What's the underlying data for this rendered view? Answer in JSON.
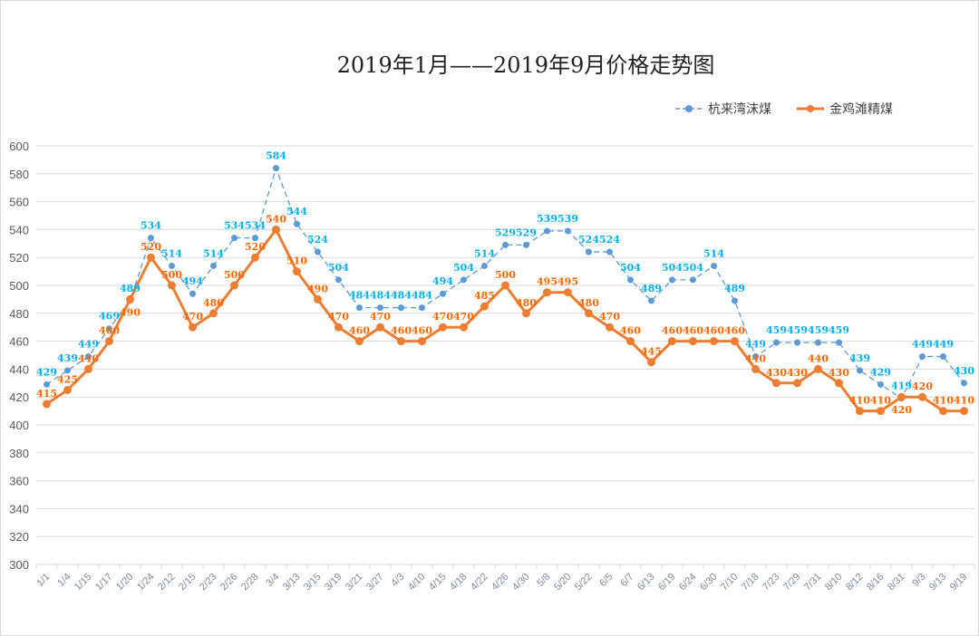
{
  "chart_data": {
    "type": "line",
    "title": "2019年1月——2019年9月价格走势图",
    "categories": [
      "1/1",
      "1/4",
      "1/15",
      "1/17",
      "1/20",
      "1/24",
      "2/12",
      "2/15",
      "2/23",
      "2/26",
      "2/28",
      "3/4",
      "3/13",
      "3/15",
      "3/19",
      "3/21",
      "3/27",
      "4/3",
      "4/10",
      "4/15",
      "4/18",
      "4/22",
      "4/26",
      "4/30",
      "5/8",
      "5/20",
      "5/22",
      "6/5",
      "6/7",
      "6/13",
      "6/19",
      "6/24",
      "6/30",
      "7/10",
      "7/18",
      "7/23",
      "7/29",
      "7/31",
      "8/10",
      "8/12",
      "8/16",
      "8/31",
      "9/3",
      "9/13",
      "9/19"
    ],
    "series": [
      {
        "name": "杭来湾沫煤",
        "color": "#5B9BD5",
        "label_color": "#00B0F0",
        "style": "dashed",
        "values": [
          429,
          439,
          449,
          469,
          489,
          534,
          514,
          494,
          514,
          534,
          534,
          584,
          544,
          524,
          504,
          484,
          484,
          484,
          484,
          494,
          504,
          514,
          529,
          529,
          539,
          539,
          524,
          524,
          504,
          489,
          504,
          504,
          514,
          489,
          449,
          459,
          459,
          459,
          459,
          439,
          429,
          419,
          449,
          449,
          430
        ]
      },
      {
        "name": "金鸡滩精煤",
        "color": "#ED7D31",
        "label_color": "#FF6600",
        "style": "solid",
        "values": [
          415,
          425,
          440,
          460,
          490,
          520,
          500,
          470,
          480,
          500,
          520,
          540,
          510,
          490,
          470,
          460,
          470,
          460,
          460,
          470,
          470,
          485,
          500,
          480,
          495,
          495,
          480,
          470,
          460,
          445,
          460,
          460,
          460,
          460,
          440,
          430,
          430,
          440,
          430,
          410,
          410,
          420,
          420,
          410,
          410
        ]
      }
    ],
    "ylim": [
      300,
      600
    ],
    "yticks": [
      300,
      320,
      340,
      360,
      380,
      400,
      420,
      440,
      460,
      480,
      500,
      520,
      540,
      560,
      580,
      600
    ],
    "grid": true,
    "legend": "top-right"
  }
}
